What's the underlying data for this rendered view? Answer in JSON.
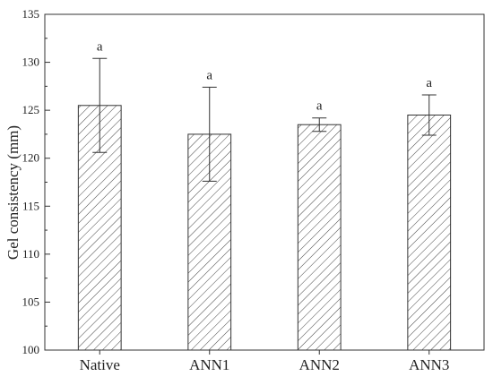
{
  "chart_data": {
    "type": "bar",
    "title": "",
    "xlabel": "",
    "ylabel": "Gel consistency (mm)",
    "ylim": [
      100,
      135
    ],
    "yticks": [
      100,
      105,
      110,
      115,
      120,
      125,
      130,
      135
    ],
    "categories": [
      "Native",
      "ANN1",
      "ANN2",
      "ANN3"
    ],
    "values": [
      125.5,
      122.5,
      123.5,
      124.5
    ],
    "errors": [
      4.9,
      4.9,
      0.7,
      2.1
    ],
    "significance": [
      "a",
      "a",
      "a",
      "a"
    ],
    "fill_pattern": "diagonal-hatch",
    "bar_color": "#333333",
    "grid": false,
    "legend": "none"
  }
}
